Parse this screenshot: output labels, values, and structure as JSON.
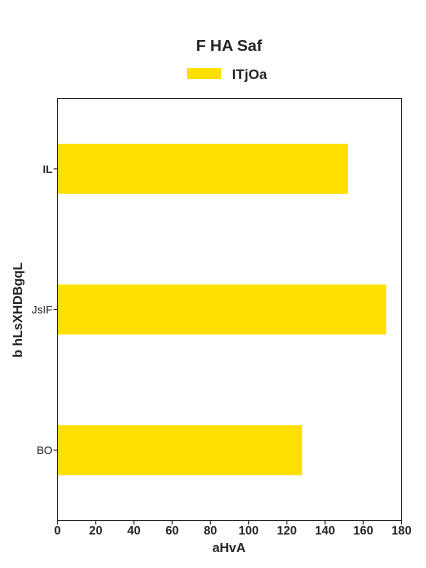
{
  "chart_data": {
    "type": "bar",
    "orientation": "horizontal",
    "title": "F  HA Saf",
    "xlabel": "aHvA",
    "ylabel": "b hLsXHDBgqL",
    "categories": [
      "IL",
      "JsIF",
      "BO"
    ],
    "series": [
      {
        "name": "ITjOa",
        "values": [
          152,
          172,
          128
        ],
        "color": "#FFE000"
      }
    ],
    "xlim": [
      0,
      180
    ],
    "xticks": [
      0,
      20,
      40,
      60,
      80,
      100,
      120,
      140,
      160,
      180
    ],
    "grid": false,
    "legend_position": "top-center"
  }
}
